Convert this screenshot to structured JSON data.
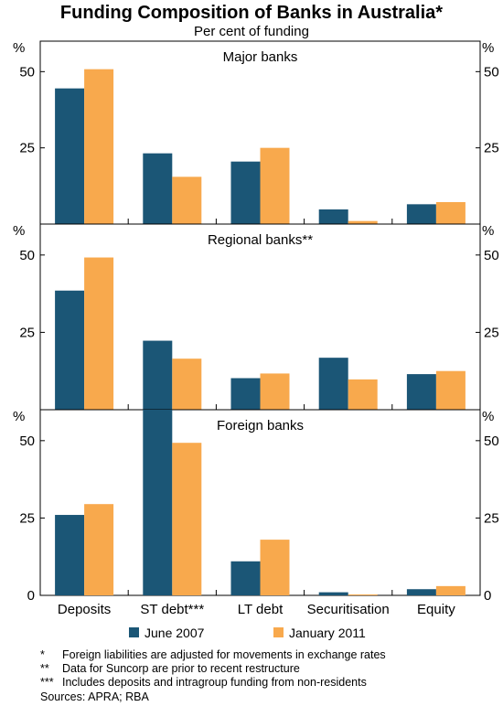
{
  "chart_data": {
    "type": "bar",
    "title": "Funding Composition of Banks in Australia*",
    "subtitle": "Per cent of funding",
    "y_unit": "%",
    "categories": [
      "Deposits",
      "ST debt***",
      "LT debt",
      "Securitisation",
      "Equity"
    ],
    "series_names": [
      "June 2007",
      "January 2011"
    ],
    "colors": [
      "#1b5676",
      "#f8a94d"
    ],
    "ylim": [
      0,
      60
    ],
    "yticks": [
      0,
      25,
      50
    ],
    "panels": [
      {
        "title": "Major banks",
        "series": [
          {
            "name": "June 2007",
            "values": [
              44.5,
              23.2,
              20.5,
              4.8,
              6.5
            ]
          },
          {
            "name": "January 2011",
            "values": [
              50.8,
              15.5,
              25.0,
              1.0,
              7.2
            ]
          }
        ]
      },
      {
        "title": "Regional banks**",
        "series": [
          {
            "name": "June 2007",
            "values": [
              38.5,
              22.3,
              10.2,
              16.8,
              11.5
            ]
          },
          {
            "name": "January 2011",
            "values": [
              49.2,
              16.5,
              11.7,
              9.8,
              12.5
            ]
          }
        ]
      },
      {
        "title": "Foreign banks",
        "series": [
          {
            "name": "June 2007",
            "values": [
              26.0,
              60.0,
              11.0,
              1.0,
              2.0
            ]
          },
          {
            "name": "January 2011",
            "values": [
              29.5,
              49.3,
              18.0,
              0.3,
              3.0
            ]
          }
        ]
      }
    ],
    "footnotes": [
      {
        "mark": "*",
        "text": "Foreign liabilities are adjusted for movements in exchange rates"
      },
      {
        "mark": "**",
        "text": "Data for Suncorp are prior to recent restructure"
      },
      {
        "mark": "***",
        "text": "Includes deposits and intragroup funding from non-residents"
      }
    ],
    "sources": "Sources: APRA; RBA"
  }
}
